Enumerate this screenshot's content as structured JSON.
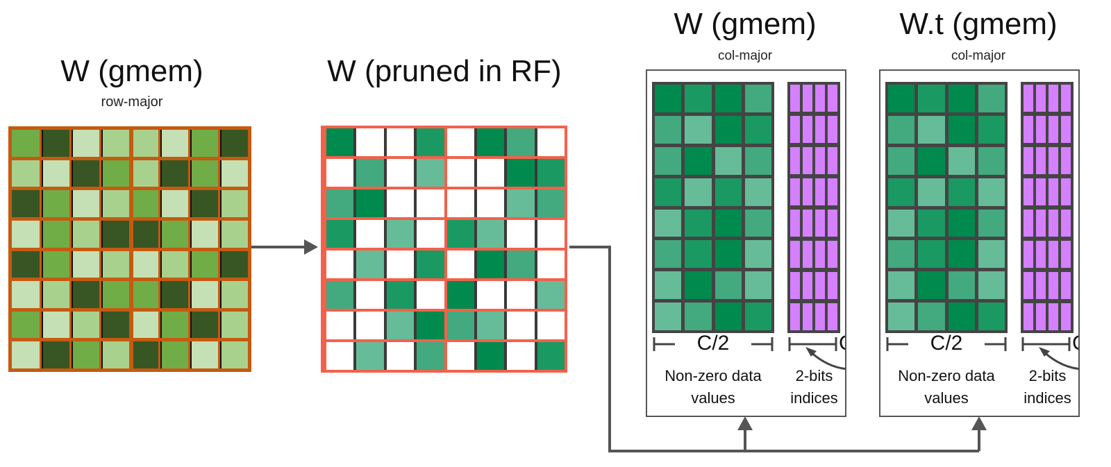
{
  "palette": {
    "A": "#70ad47",
    "D": "#375623",
    "L": "#c5e0b4",
    "M": "#a9d18e",
    "g1": "#008a4d",
    "g2": "#1a9a62",
    "g3": "#43a97e",
    "g4": "#66bc98",
    "W": "#ffffff",
    "index": "#d580ff",
    "border_gmem": "#c55a11",
    "border_rf": "#f4604b"
  },
  "panel_dense": {
    "title": "W (gmem)",
    "subtitle": "row-major",
    "cells": [
      [
        "A",
        "D",
        "L",
        "M",
        "M",
        "L",
        "A",
        "D"
      ],
      [
        "M",
        "L",
        "D",
        "A",
        "M",
        "D",
        "A",
        "L"
      ],
      [
        "D",
        "A",
        "L",
        "M",
        "A",
        "L",
        "D",
        "M"
      ],
      [
        "L",
        "A",
        "M",
        "D",
        "D",
        "A",
        "L",
        "M"
      ],
      [
        "D",
        "A",
        "L",
        "M",
        "L",
        "M",
        "A",
        "D"
      ],
      [
        "L",
        "M",
        "D",
        "A",
        "A",
        "D",
        "L",
        "M"
      ],
      [
        "A",
        "L",
        "M",
        "D",
        "L",
        "A",
        "D",
        "M"
      ],
      [
        "L",
        "D",
        "A",
        "M",
        "D",
        "A",
        "L",
        "M"
      ]
    ]
  },
  "panel_pruned": {
    "title": "W (pruned in RF)",
    "cells": [
      [
        "g1",
        "W",
        "W",
        "g2",
        "W",
        "g1",
        "g3",
        "W"
      ],
      [
        "W",
        "g3",
        "W",
        "g4",
        "W",
        "W",
        "g1",
        "g2"
      ],
      [
        "g3",
        "g1",
        "W",
        "W",
        "W",
        "W",
        "g4",
        "g3"
      ],
      [
        "g2",
        "W",
        "g4",
        "W",
        "g2",
        "g4",
        "W",
        "W"
      ],
      [
        "W",
        "g4",
        "W",
        "g2",
        "W",
        "g1",
        "g3",
        "W"
      ],
      [
        "g3",
        "W",
        "g2",
        "W",
        "g1",
        "W",
        "W",
        "g4"
      ],
      [
        "W",
        "W",
        "g4",
        "g1",
        "g3",
        "g4",
        "W",
        "W"
      ],
      [
        "W",
        "g4",
        "W",
        "g3",
        "W",
        "g1",
        "W",
        "g2"
      ]
    ]
  },
  "compressed_panels": [
    {
      "title": "W (gmem)",
      "subtitle": "col-major",
      "dim_label": "C/2",
      "dim_label_idx": "C",
      "values_label_1": "Non-zero data",
      "values_label_2": "values",
      "indices_label_1": "2-bits",
      "indices_label_2": "indices"
    },
    {
      "title": "W.t (gmem)",
      "subtitle": "col-major",
      "dim_label": "C/2",
      "dim_label_idx": "C",
      "values_label_1": "Non-zero data",
      "values_label_2": "values",
      "indices_label_1": "2-bits",
      "indices_label_2": "indices"
    }
  ],
  "compressed_cells": [
    [
      "g1",
      "g2",
      "g1",
      "g3"
    ],
    [
      "g3",
      "g4",
      "g1",
      "g2"
    ],
    [
      "g3",
      "g1",
      "g4",
      "g3"
    ],
    [
      "g2",
      "g4",
      "g2",
      "g4"
    ],
    [
      "g4",
      "g2",
      "g1",
      "g3"
    ],
    [
      "g3",
      "g2",
      "g1",
      "g4"
    ],
    [
      "g4",
      "g1",
      "g3",
      "g4"
    ],
    [
      "g4",
      "g3",
      "g1",
      "g2"
    ]
  ]
}
